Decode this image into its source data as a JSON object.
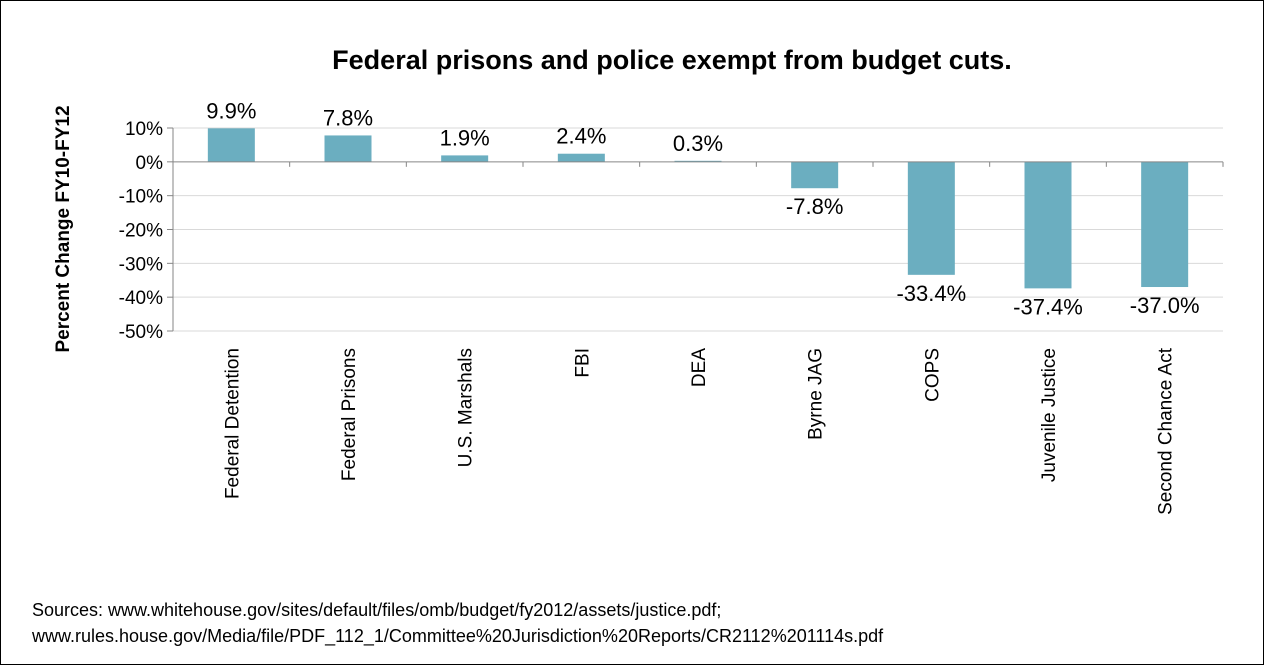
{
  "chart_data": {
    "type": "bar",
    "title": "Federal prisons and police exempt from budget cuts.",
    "ylabel": "Percent Change FY10-FY12",
    "xlabel": "",
    "categories": [
      "Federal Detention",
      "Federal Prisons",
      "U.S. Marshals",
      "FBI",
      "DEA",
      "Byrne JAG",
      "COPS",
      "Juvenile Justice",
      "Second Chance Act"
    ],
    "values": [
      9.9,
      7.8,
      1.9,
      2.4,
      0.3,
      -7.8,
      -33.4,
      -37.4,
      -37.0
    ],
    "data_labels": [
      "9.9%",
      "7.8%",
      "1.9%",
      "2.4%",
      "0.3%",
      "-7.8%",
      "-33.4%",
      "-37.4%",
      "-37.0%"
    ],
    "ylim": [
      -50,
      10
    ],
    "yticks": [
      10,
      0,
      -10,
      -20,
      -30,
      -40,
      -50
    ],
    "ytick_labels": [
      "10%",
      "0%",
      "-10%",
      "-20%",
      "-30%",
      "-40%",
      "-50%"
    ],
    "grid": true,
    "legend": "none",
    "bar_color": "#6baec0"
  },
  "sources": {
    "line1": "Sources: www.whitehouse.gov/sites/default/files/omb/budget/fy2012/assets/justice.pdf;",
    "line2": "www.rules.house.gov/Media/file/PDF_112_1/Committee%20Jurisdiction%20Reports/CR2112%201114s.pdf"
  }
}
